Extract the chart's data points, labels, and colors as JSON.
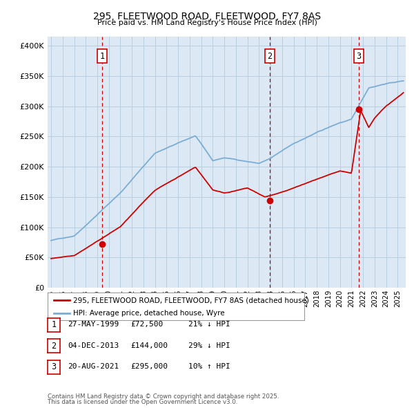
{
  "title": "295, FLEETWOOD ROAD, FLEETWOOD, FY7 8AS",
  "subtitle": "Price paid vs. HM Land Registry's House Price Index (HPI)",
  "yticks": [
    0,
    50000,
    100000,
    150000,
    200000,
    250000,
    300000,
    350000,
    400000
  ],
  "xlim_start": 1994.7,
  "xlim_end": 2025.7,
  "ylim": [
    0,
    415000
  ],
  "transactions": [
    {
      "num": 1,
      "date": "27-MAY-1999",
      "price": 72500,
      "pct": "21%",
      "dir": "↓",
      "year": 1999.42
    },
    {
      "num": 2,
      "date": "04-DEC-2013",
      "price": 144000,
      "pct": "29%",
      "dir": "↓",
      "year": 2013.92
    },
    {
      "num": 3,
      "date": "20-AUG-2021",
      "price": 295000,
      "pct": "10%",
      "dir": "↑",
      "year": 2021.63
    }
  ],
  "legend_line1": "295, FLEETWOOD ROAD, FLEETWOOD, FY7 8AS (detached house)",
  "legend_line2": "HPI: Average price, detached house, Wyre",
  "footer_line1": "Contains HM Land Registry data © Crown copyright and database right 2025.",
  "footer_line2": "This data is licensed under the Open Government Licence v3.0.",
  "line_color_red": "#cc0000",
  "line_color_blue": "#7aadd4",
  "bg_color": "#dce9f5",
  "grid_color": "#b8cfe0",
  "marker_color": "#cc0000",
  "dashed_color": "#cc0000",
  "num_box_color": "#cc0000"
}
